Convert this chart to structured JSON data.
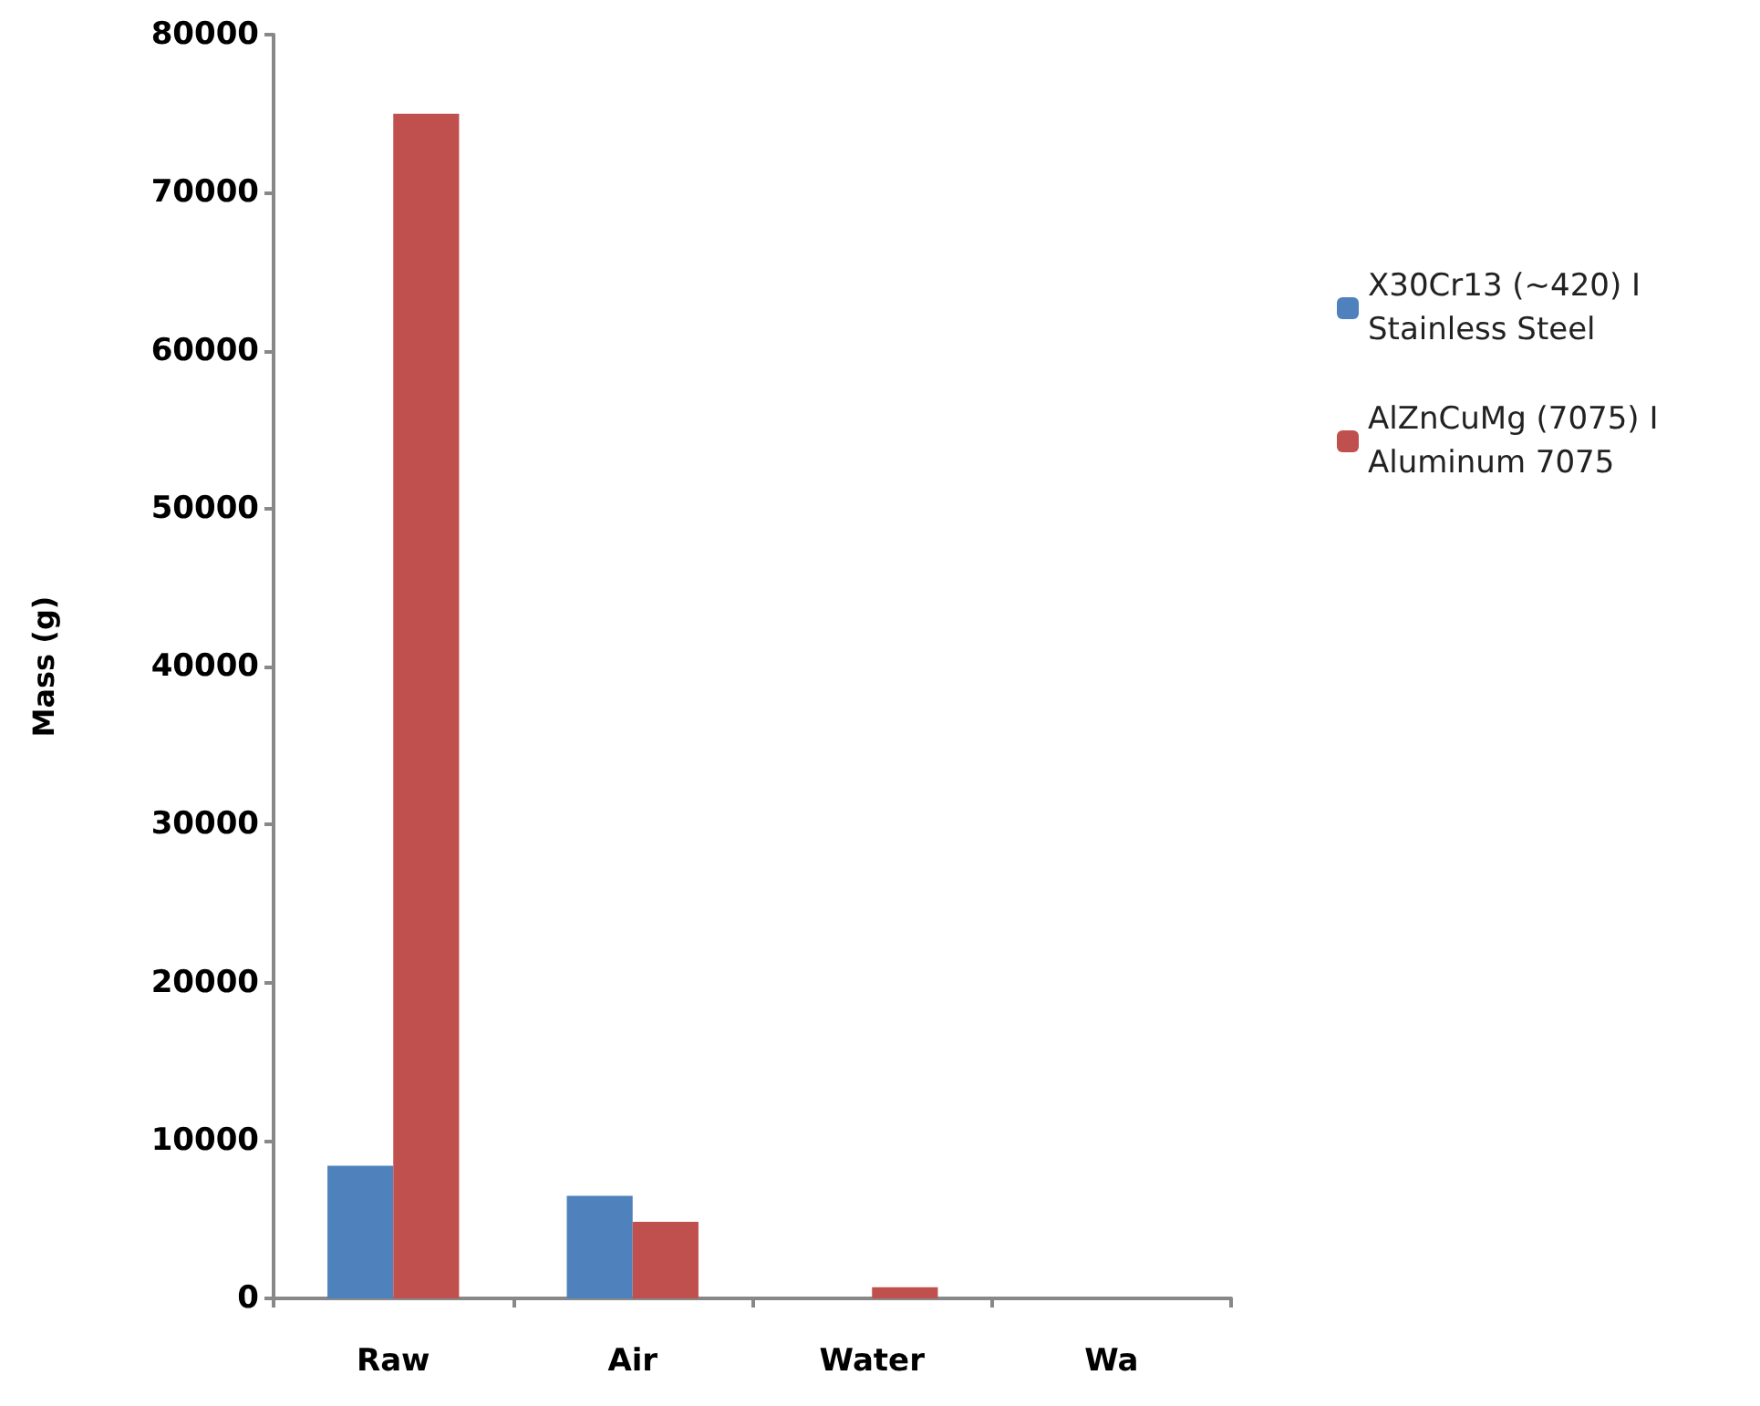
{
  "chart_data": {
    "type": "bar",
    "ylabel": "Mass (g)",
    "categories": [
      "Raw",
      "Air",
      "Water",
      "Wa"
    ],
    "series": [
      {
        "name": "X30Cr13 (~420) I Stainless Steel",
        "color": "#4f81bd",
        "values": [
          8400,
          6500,
          0,
          null
        ]
      },
      {
        "name": "AlZnCuMg (7075) I Aluminum 7075",
        "color": "#c0504d",
        "values": [
          75000,
          4850,
          700,
          null
        ]
      }
    ],
    "ylim": [
      0,
      80000
    ],
    "yticks": [
      0,
      10000,
      20000,
      30000,
      40000,
      50000,
      60000,
      70000,
      80000
    ],
    "grid": false,
    "legend": "right"
  }
}
